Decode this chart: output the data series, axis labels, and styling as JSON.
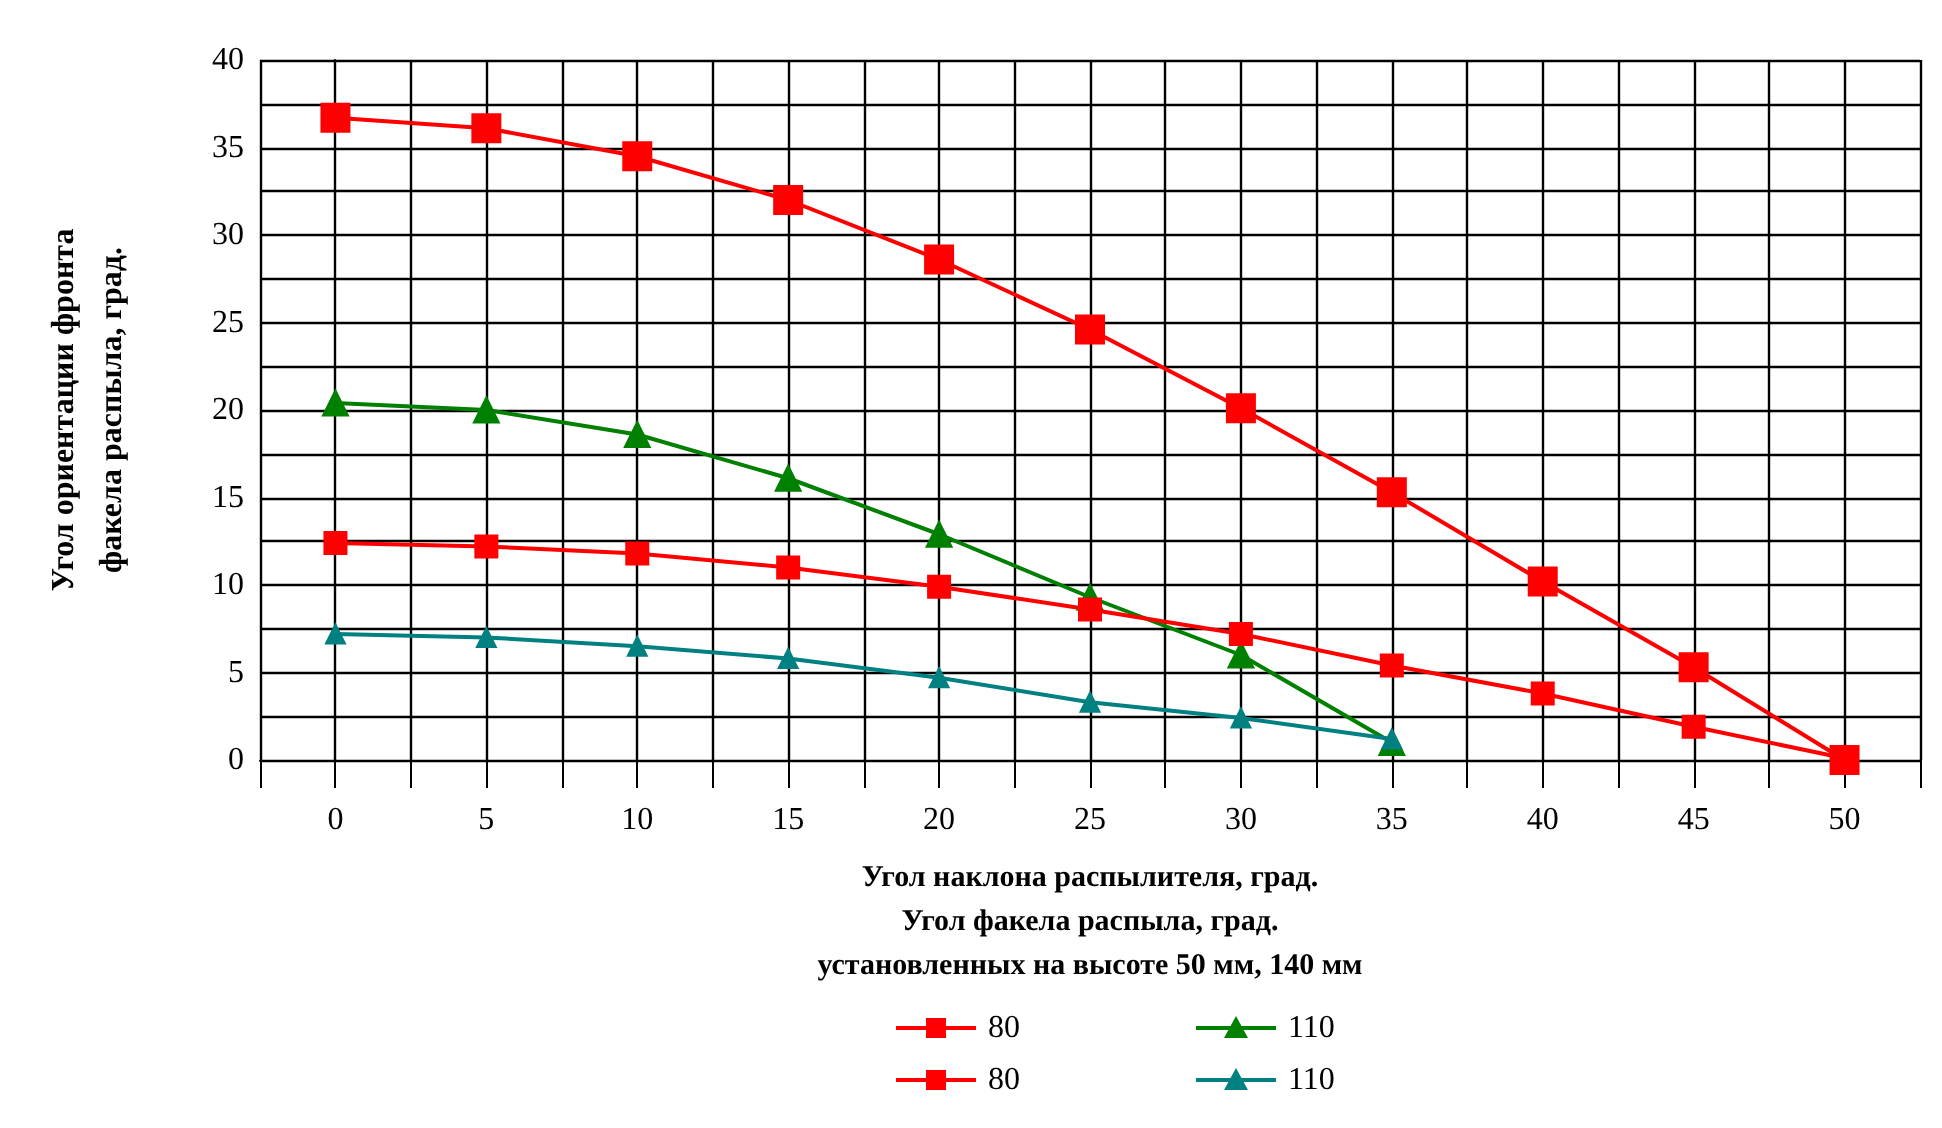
{
  "chart_data": {
    "type": "line",
    "xlabel": "Угол наклона распылителя, град.\nУгол факела распыла, град.\nустановленных на высоте 50 мм, 140 мм",
    "ylabel": "Угол ориентации фронта\nфакела распыла, град.",
    "x": [
      0,
      5,
      10,
      15,
      20,
      25,
      30,
      35,
      40,
      45,
      50
    ],
    "series": [
      {
        "name": "80",
        "color": "#ff0000",
        "marker": "square",
        "values": [
          36.7,
          36.1,
          34.5,
          32.0,
          28.6,
          24.6,
          20.1,
          15.3,
          10.2,
          5.3,
          0
        ]
      },
      {
        "name": "110",
        "color": "#008000",
        "marker": "triangle",
        "values": [
          20.4,
          20.0,
          18.6,
          16.1,
          12.9,
          9.3,
          6.0,
          1.0,
          null,
          null,
          null
        ]
      },
      {
        "name": "80",
        "color": "#ff0000",
        "marker": "square",
        "values": [
          12.4,
          12.2,
          11.8,
          11.0,
          9.9,
          8.6,
          7.2,
          5.4,
          3.8,
          1.9,
          0.1
        ]
      },
      {
        "name": "110",
        "color": "#008080",
        "marker": "triangle",
        "values": [
          7.2,
          7.0,
          6.5,
          5.8,
          4.7,
          3.3,
          2.4,
          1.2,
          null,
          null,
          null
        ]
      }
    ],
    "xlim": [
      -2.5,
      52.5
    ],
    "xticks": [
      {
        "value": -2.5,
        "label": null
      },
      0,
      {
        "value": 2.5,
        "label": null
      },
      5,
      {
        "value": 7.5,
        "label": null
      },
      10,
      {
        "value": 12.5,
        "label": null
      },
      15,
      {
        "value": 17.5,
        "label": null
      },
      20,
      {
        "value": 22.5,
        "label": null
      },
      25,
      {
        "value": 27.5,
        "label": null
      },
      30,
      {
        "value": 32.5,
        "label": null
      },
      35,
      {
        "value": 37.5,
        "label": null
      },
      40,
      {
        "value": 42.5,
        "label": null
      },
      45,
      {
        "value": 47.5,
        "label": null
      },
      50,
      {
        "value": 52.5,
        "label": null
      }
    ],
    "ylim": [
      0,
      40
    ],
    "yticks": [
      0,
      {
        "value": 2.5,
        "label": null
      },
      5,
      {
        "value": 7.5,
        "label": null
      },
      10,
      {
        "value": 12.5,
        "label": null
      },
      15,
      {
        "value": 17.5,
        "label": null
      },
      20,
      {
        "value": 22.5,
        "label": null
      },
      25,
      {
        "value": 27.5,
        "label": null
      },
      30,
      {
        "value": 32.5,
        "label": null
      },
      35,
      {
        "value": 37.5,
        "label": null
      },
      40
    ],
    "grid": true,
    "legend": "bottom",
    "line_style": "solid"
  }
}
